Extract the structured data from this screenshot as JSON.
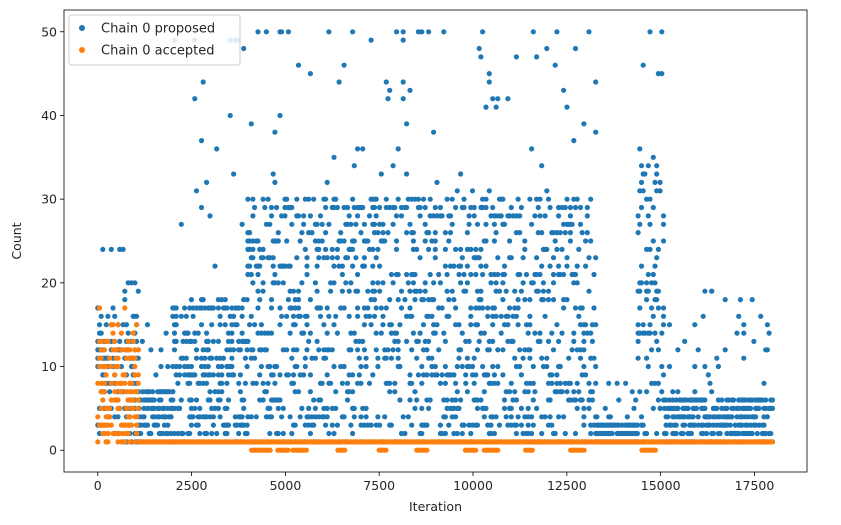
{
  "chart_data": {
    "type": "scatter",
    "xlabel": "Iteration",
    "ylabel": "Count",
    "xlim": [
      -900,
      18900
    ],
    "ylim": [
      -2.6,
      52.6
    ],
    "xticks": [
      0,
      2500,
      5000,
      7500,
      10000,
      12500,
      15000,
      17500
    ],
    "yticks": [
      0,
      10,
      20,
      30,
      40,
      50
    ],
    "legend_position": "top-left",
    "grid": false,
    "series": [
      {
        "name": "Chain 0 proposed",
        "color": "#1f77b4",
        "regions": [
          {
            "x_range": [
              0,
              1100
            ],
            "y_max": 24,
            "typical_max": 16
          },
          {
            "x_range": [
              1100,
              2000
            ],
            "y_max": 15,
            "typical_max": 7
          },
          {
            "x_range": [
              2000,
              4000
            ],
            "y_max": 49,
            "typical_max": 18
          },
          {
            "x_range": [
              4000,
              13300
            ],
            "y_max": 50,
            "typical_max": 30
          },
          {
            "x_range": [
              13300,
              14400
            ],
            "y_max": 8,
            "typical_max": 3
          },
          {
            "x_range": [
              14400,
              15100
            ],
            "y_max": 50,
            "typical_max": 35
          },
          {
            "x_range": [
              15100,
              18000
            ],
            "y_max": 19,
            "typical_max": 6
          }
        ]
      },
      {
        "name": "Chain 0 accepted",
        "color": "#ff7f0e",
        "regions": [
          {
            "x_range": [
              0,
              1100
            ],
            "y_max": 17,
            "typical_max": 13
          },
          {
            "x_range": [
              1100,
              18000
            ],
            "y_max": 1,
            "typical_max": 1
          }
        ],
        "zero_clusters": [
          [
            4100,
            4600
          ],
          [
            4800,
            5100
          ],
          [
            5200,
            5600
          ],
          [
            6400,
            6600
          ],
          [
            7500,
            7700
          ],
          [
            8500,
            8800
          ],
          [
            9800,
            10100
          ],
          [
            10300,
            10700
          ],
          [
            11400,
            11600
          ],
          [
            12600,
            13000
          ],
          [
            14500,
            14900
          ]
        ]
      }
    ]
  }
}
